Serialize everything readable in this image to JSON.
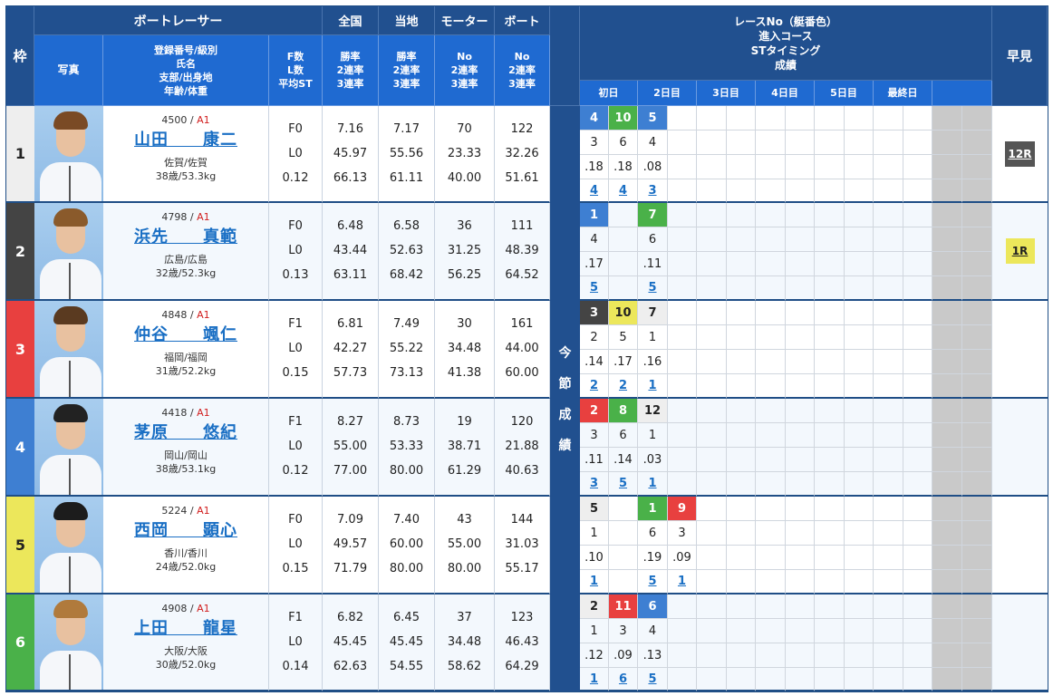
{
  "colors": {
    "header_dark": "#21508f",
    "header_blue": "#1f6ad1",
    "frame_colors": [
      "#eeeeee",
      "#444444",
      "#e8403f",
      "#3e7fd2",
      "#ece75b",
      "#4ab149"
    ],
    "frame_text": [
      "#222222",
      "#ffffff",
      "#ffffff",
      "#ffffff",
      "#222222",
      "#ffffff"
    ],
    "race_chip": {
      "1": "#eeeeee",
      "2": "#444444",
      "3": "#e8403f",
      "4": "#3e7fd2",
      "5": "#ece75b",
      "6": "#4ab149"
    },
    "class_red": "#d11d1d",
    "link_blue": "#1a6fc4"
  },
  "header": {
    "frame": "枠",
    "racer_group": "ボートレーサー",
    "photo": "写真",
    "info_lines": [
      "登録番号/級別",
      "氏名",
      "支部/出身地",
      "年齢/体重"
    ],
    "fl_lines": [
      "F数",
      "L数",
      "平均ST"
    ],
    "national": {
      "title": "全国",
      "lines": [
        "勝率",
        "2連率",
        "3連率"
      ]
    },
    "local": {
      "title": "当地",
      "lines": [
        "勝率",
        "2連率",
        "3連率"
      ]
    },
    "motor": {
      "title": "モーター",
      "lines": [
        "No",
        "2連率",
        "3連率"
      ]
    },
    "boat": {
      "title": "ボート",
      "lines": [
        "No",
        "2連率",
        "3連率"
      ]
    },
    "results_lines": [
      "レースNo（艇番色）",
      "進入コース",
      "STタイミング",
      "成績"
    ],
    "days": [
      "初日",
      "2日目",
      "3日目",
      "4日目",
      "5日目",
      "最終日",
      ""
    ],
    "hayami": "早見",
    "vertical_label": [
      "今",
      "節",
      "成",
      "績"
    ]
  },
  "racers": [
    {
      "frame": "1",
      "reg": "4500",
      "cls": "A1",
      "name": "山田　　康二",
      "branch": "佐賀/佐賀",
      "age_weight": "38歳/53.3kg",
      "hair": "#7a4a25",
      "f": "F0",
      "l": "L0",
      "avg_st": "0.12",
      "national": [
        "7.16",
        "45.97",
        "66.13"
      ],
      "local": [
        "7.17",
        "55.56",
        "61.11"
      ],
      "motor": [
        "70",
        "23.33",
        "40.00"
      ],
      "boat": [
        "122",
        "32.26",
        "51.61"
      ],
      "races": [
        {
          "no": "4",
          "color": "4",
          "course": "3",
          "st": ".18",
          "result": "4"
        },
        {
          "no": "10",
          "color": "6",
          "course": "6",
          "st": ".18",
          "result": "4"
        },
        {
          "no": "5",
          "color": "4",
          "course": "4",
          "st": ".08",
          "result": "3"
        }
      ],
      "hayami": {
        "label": "12R",
        "bg": "#555555",
        "fg": "#ffffff"
      }
    },
    {
      "frame": "2",
      "reg": "4798",
      "cls": "A1",
      "name": "浜先　　真範",
      "branch": "広島/広島",
      "age_weight": "32歳/52.3kg",
      "hair": "#8a5a2b",
      "f": "F0",
      "l": "L0",
      "avg_st": "0.13",
      "national": [
        "6.48",
        "43.44",
        "63.11"
      ],
      "local": [
        "6.58",
        "52.63",
        "68.42"
      ],
      "motor": [
        "36",
        "31.25",
        "56.25"
      ],
      "boat": [
        "111",
        "48.39",
        "64.52"
      ],
      "races": [
        {
          "no": "1",
          "color": "4",
          "course": "4",
          "st": ".17",
          "result": "5"
        },
        null,
        {
          "no": "7",
          "color": "6",
          "course": "6",
          "st": ".11",
          "result": "5"
        }
      ],
      "hayami": {
        "label": "1R",
        "bg": "#ece75b",
        "fg": "#222222"
      }
    },
    {
      "frame": "3",
      "reg": "4848",
      "cls": "A1",
      "name": "仲谷　　颯仁",
      "branch": "福岡/福岡",
      "age_weight": "31歳/52.2kg",
      "hair": "#5a3a20",
      "f": "F1",
      "l": "L0",
      "avg_st": "0.15",
      "national": [
        "6.81",
        "42.27",
        "57.73"
      ],
      "local": [
        "7.49",
        "55.22",
        "73.13"
      ],
      "motor": [
        "30",
        "34.48",
        "41.38"
      ],
      "boat": [
        "161",
        "44.00",
        "60.00"
      ],
      "races": [
        {
          "no": "3",
          "color": "2",
          "course": "2",
          "st": ".14",
          "result": "2"
        },
        {
          "no": "10",
          "color": "5",
          "course": "5",
          "st": ".17",
          "result": "2"
        },
        {
          "no": "7",
          "color": "1",
          "course": "1",
          "st": ".16",
          "result": "1"
        }
      ],
      "hayami": null
    },
    {
      "frame": "4",
      "reg": "4418",
      "cls": "A1",
      "name": "茅原　　悠紀",
      "branch": "岡山/岡山",
      "age_weight": "38歳/53.1kg",
      "hair": "#222222",
      "f": "F1",
      "l": "L0",
      "avg_st": "0.12",
      "national": [
        "8.27",
        "55.00",
        "77.00"
      ],
      "local": [
        "8.73",
        "53.33",
        "80.00"
      ],
      "motor": [
        "19",
        "38.71",
        "61.29"
      ],
      "boat": [
        "120",
        "21.88",
        "40.63"
      ],
      "races": [
        {
          "no": "2",
          "color": "3",
          "course": "3",
          "st": ".11",
          "result": "3"
        },
        {
          "no": "8",
          "color": "6",
          "course": "6",
          "st": ".14",
          "result": "5"
        },
        {
          "no": "12",
          "color": "1",
          "course": "1",
          "st": ".03",
          "result": "1"
        }
      ],
      "hayami": null
    },
    {
      "frame": "5",
      "reg": "5224",
      "cls": "A1",
      "name": "西岡　　顕心",
      "branch": "香川/香川",
      "age_weight": "24歳/52.0kg",
      "hair": "#1c1c1c",
      "f": "F0",
      "l": "L0",
      "avg_st": "0.15",
      "national": [
        "7.09",
        "49.57",
        "71.79"
      ],
      "local": [
        "7.40",
        "60.00",
        "80.00"
      ],
      "motor": [
        "43",
        "55.00",
        "80.00"
      ],
      "boat": [
        "144",
        "31.03",
        "55.17"
      ],
      "races": [
        {
          "no": "5",
          "color": "1",
          "course": "1",
          "st": ".10",
          "result": "1"
        },
        null,
        {
          "no": "1",
          "color": "6",
          "course": "6",
          "st": ".19",
          "result": "5"
        },
        {
          "no": "9",
          "color": "3",
          "course": "3",
          "st": ".09",
          "result": "1"
        }
      ],
      "hayami": null
    },
    {
      "frame": "6",
      "reg": "4908",
      "cls": "A1",
      "name": "上田　　龍星",
      "branch": "大阪/大阪",
      "age_weight": "30歳/52.0kg",
      "hair": "#b07a3c",
      "f": "F1",
      "l": "L0",
      "avg_st": "0.14",
      "national": [
        "6.82",
        "45.45",
        "62.63"
      ],
      "local": [
        "6.45",
        "45.45",
        "54.55"
      ],
      "motor": [
        "37",
        "34.48",
        "58.62"
      ],
      "boat": [
        "123",
        "46.43",
        "64.29"
      ],
      "races": [
        {
          "no": "2",
          "color": "1",
          "course": "1",
          "st": ".12",
          "result": "1"
        },
        {
          "no": "11",
          "color": "3",
          "course": "3",
          "st": ".09",
          "result": "6"
        },
        {
          "no": "6",
          "color": "4",
          "course": "4",
          "st": ".13",
          "result": "5"
        }
      ],
      "hayami": null
    }
  ]
}
